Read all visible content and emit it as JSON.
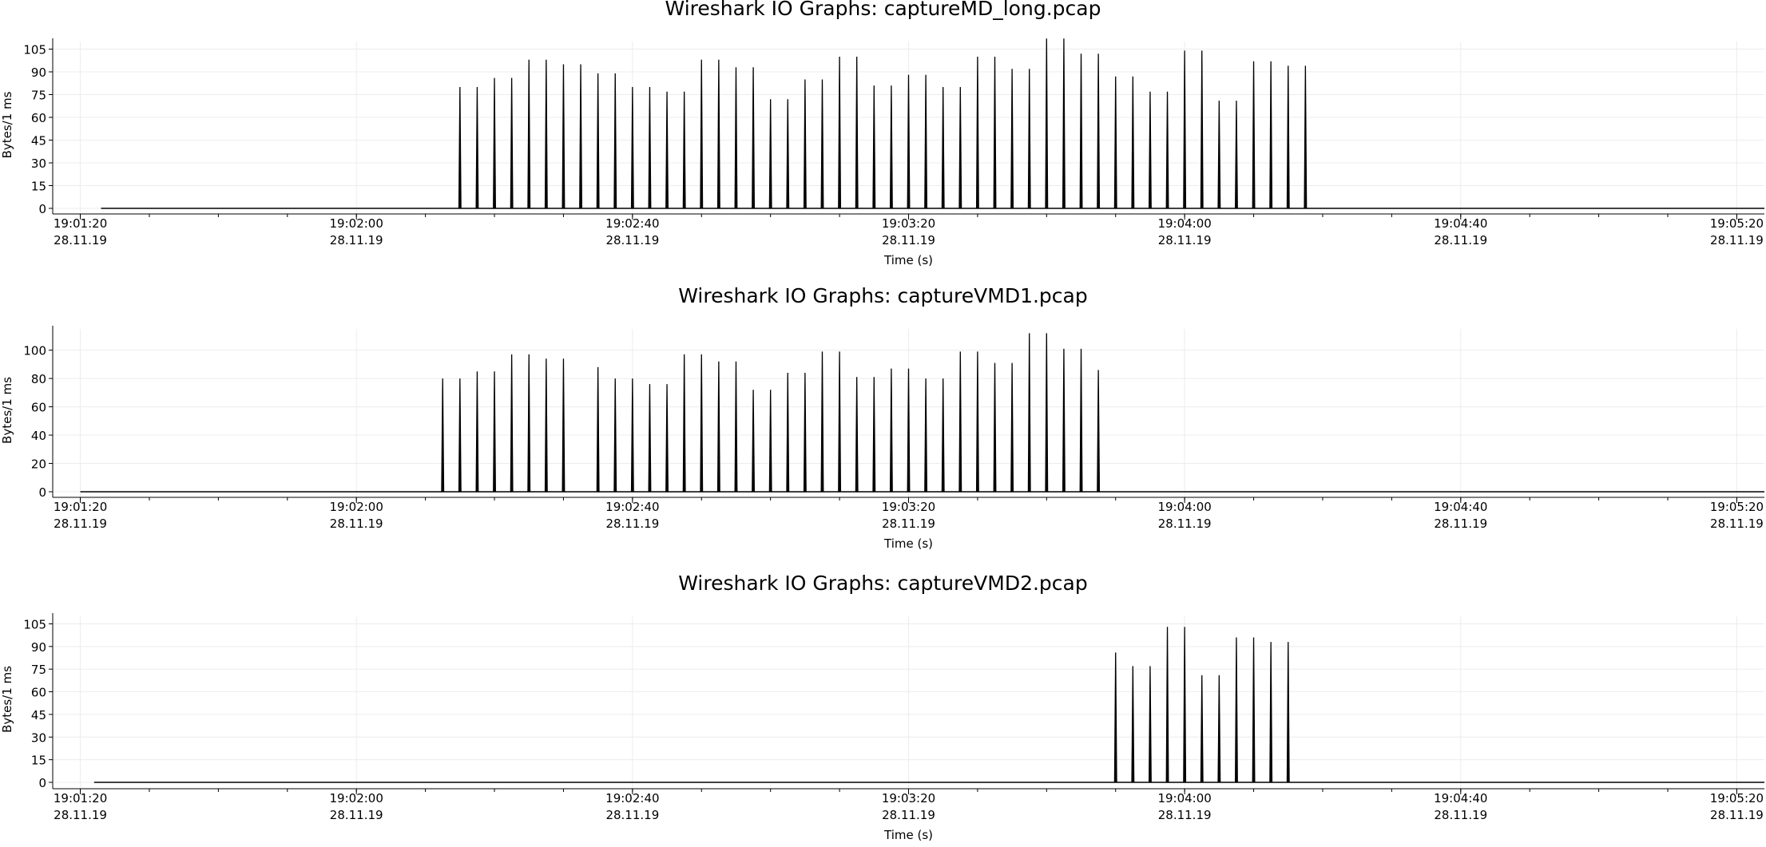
{
  "chart_data": [
    {
      "type": "line",
      "title": "Wireshark IO Graphs: captureMD_long.pcap",
      "ylabel": "Bytes/1 ms",
      "xlabel": "Time (s)",
      "ylim": [
        0,
        110
      ],
      "yticks": [
        0,
        15,
        30,
        45,
        60,
        75,
        90,
        105
      ],
      "xlim": [
        "19:01:16",
        "19:05:24"
      ],
      "xticks": [
        "19:01:20",
        "19:02:00",
        "19:02:40",
        "19:03:20",
        "19:04:00",
        "19:04:40",
        "19:05:20"
      ],
      "date_label": "28.11.19",
      "grid": true,
      "baseline": {
        "start": "19:01:23",
        "end": "19:05:24"
      },
      "series": [
        {
          "color": "#000000",
          "points": [
            {
              "t": "19:02:15",
              "y": 80
            },
            {
              "t": "19:02:17.5",
              "y": 80
            },
            {
              "t": "19:02:20",
              "y": 86
            },
            {
              "t": "19:02:22.5",
              "y": 86
            },
            {
              "t": "19:02:25",
              "y": 98
            },
            {
              "t": "19:02:27.5",
              "y": 98
            },
            {
              "t": "19:02:30",
              "y": 95
            },
            {
              "t": "19:02:32.5",
              "y": 95
            },
            {
              "t": "19:02:35",
              "y": 89
            },
            {
              "t": "19:02:37.5",
              "y": 89
            },
            {
              "t": "19:02:40",
              "y": 80
            },
            {
              "t": "19:02:42.5",
              "y": 80
            },
            {
              "t": "19:02:45",
              "y": 77
            },
            {
              "t": "19:02:47.5",
              "y": 77
            },
            {
              "t": "19:02:50",
              "y": 98
            },
            {
              "t": "19:02:52.5",
              "y": 98
            },
            {
              "t": "19:02:55",
              "y": 93
            },
            {
              "t": "19:02:57.5",
              "y": 93
            },
            {
              "t": "19:03:00",
              "y": 72
            },
            {
              "t": "19:03:02.5",
              "y": 72
            },
            {
              "t": "19:03:05",
              "y": 85
            },
            {
              "t": "19:03:07.5",
              "y": 85
            },
            {
              "t": "19:03:10",
              "y": 100
            },
            {
              "t": "19:03:12.5",
              "y": 100
            },
            {
              "t": "19:03:15",
              "y": 81
            },
            {
              "t": "19:03:17.5",
              "y": 81
            },
            {
              "t": "19:03:20",
              "y": 88
            },
            {
              "t": "19:03:22.5",
              "y": 88
            },
            {
              "t": "19:03:25",
              "y": 80
            },
            {
              "t": "19:03:27.5",
              "y": 80
            },
            {
              "t": "19:03:30",
              "y": 100
            },
            {
              "t": "19:03:32.5",
              "y": 100
            },
            {
              "t": "19:03:35",
              "y": 92
            },
            {
              "t": "19:03:37.5",
              "y": 92
            },
            {
              "t": "19:03:40",
              "y": 112
            },
            {
              "t": "19:03:42.5",
              "y": 112
            },
            {
              "t": "19:03:45",
              "y": 102
            },
            {
              "t": "19:03:47.5",
              "y": 102
            },
            {
              "t": "19:03:50",
              "y": 87
            },
            {
              "t": "19:03:52.5",
              "y": 87
            },
            {
              "t": "19:03:55",
              "y": 77
            },
            {
              "t": "19:03:57.5",
              "y": 77
            },
            {
              "t": "19:04:00",
              "y": 104
            },
            {
              "t": "19:04:02.5",
              "y": 104
            },
            {
              "t": "19:04:05",
              "y": 71
            },
            {
              "t": "19:04:07.5",
              "y": 71
            },
            {
              "t": "19:04:10",
              "y": 97
            },
            {
              "t": "19:04:12.5",
              "y": 97
            },
            {
              "t": "19:04:15",
              "y": 94
            },
            {
              "t": "19:04:17.5",
              "y": 94
            }
          ]
        }
      ]
    },
    {
      "type": "line",
      "title": "Wireshark IO Graphs: captureVMD1.pcap",
      "ylabel": "Bytes/1 ms",
      "xlabel": "Time (s)",
      "ylim": [
        0,
        115
      ],
      "yticks": [
        0,
        20,
        40,
        60,
        80,
        100
      ],
      "xlim": [
        "19:01:16",
        "19:05:24"
      ],
      "xticks": [
        "19:01:20",
        "19:02:00",
        "19:02:40",
        "19:03:20",
        "19:04:00",
        "19:04:40",
        "19:05:20"
      ],
      "date_label": "28.11.19",
      "grid": true,
      "baseline": {
        "start": "19:01:20",
        "end": "19:05:24"
      },
      "series": [
        {
          "color": "#000000",
          "points": [
            {
              "t": "19:02:12.5",
              "y": 80
            },
            {
              "t": "19:02:15",
              "y": 80
            },
            {
              "t": "19:02:17.5",
              "y": 85
            },
            {
              "t": "19:02:20",
              "y": 85
            },
            {
              "t": "19:02:22.5",
              "y": 97
            },
            {
              "t": "19:02:25",
              "y": 97
            },
            {
              "t": "19:02:27.5",
              "y": 94
            },
            {
              "t": "19:02:30",
              "y": 94
            },
            {
              "t": "19:02:35",
              "y": 88
            },
            {
              "t": "19:02:37.5",
              "y": 80
            },
            {
              "t": "19:02:40",
              "y": 80
            },
            {
              "t": "19:02:42.5",
              "y": 76
            },
            {
              "t": "19:02:45",
              "y": 76
            },
            {
              "t": "19:02:47.5",
              "y": 97
            },
            {
              "t": "19:02:50",
              "y": 97
            },
            {
              "t": "19:02:52.5",
              "y": 92
            },
            {
              "t": "19:02:55",
              "y": 92
            },
            {
              "t": "19:02:57.5",
              "y": 72
            },
            {
              "t": "19:03:00",
              "y": 72
            },
            {
              "t": "19:03:02.5",
              "y": 84
            },
            {
              "t": "19:03:05",
              "y": 84
            },
            {
              "t": "19:03:07.5",
              "y": 99
            },
            {
              "t": "19:03:10",
              "y": 99
            },
            {
              "t": "19:03:12.5",
              "y": 81
            },
            {
              "t": "19:03:15",
              "y": 81
            },
            {
              "t": "19:03:17.5",
              "y": 87
            },
            {
              "t": "19:03:20",
              "y": 87
            },
            {
              "t": "19:03:22.5",
              "y": 80
            },
            {
              "t": "19:03:25",
              "y": 80
            },
            {
              "t": "19:03:27.5",
              "y": 99
            },
            {
              "t": "19:03:30",
              "y": 99
            },
            {
              "t": "19:03:32.5",
              "y": 91
            },
            {
              "t": "19:03:35",
              "y": 91
            },
            {
              "t": "19:03:37.5",
              "y": 112
            },
            {
              "t": "19:03:40",
              "y": 112
            },
            {
              "t": "19:03:42.5",
              "y": 101
            },
            {
              "t": "19:03:45",
              "y": 101
            },
            {
              "t": "19:03:47.5",
              "y": 86
            }
          ]
        }
      ]
    },
    {
      "type": "line",
      "title": "Wireshark IO Graphs: captureVMD2.pcap",
      "ylabel": "Bytes/1 ms",
      "xlabel": "Time (s)",
      "ylim": [
        0,
        110
      ],
      "yticks": [
        0,
        15,
        30,
        45,
        60,
        75,
        90,
        105
      ],
      "xlim": [
        "19:01:16",
        "19:05:24"
      ],
      "xticks": [
        "19:01:20",
        "19:02:00",
        "19:02:40",
        "19:03:20",
        "19:04:00",
        "19:04:40",
        "19:05:20"
      ],
      "date_label": "28.11.19",
      "grid": true,
      "baseline": {
        "start": "19:01:22",
        "end": "19:05:24"
      },
      "series": [
        {
          "color": "#000000",
          "points": [
            {
              "t": "19:03:50",
              "y": 86
            },
            {
              "t": "19:03:52.5",
              "y": 77
            },
            {
              "t": "19:03:55",
              "y": 77
            },
            {
              "t": "19:03:57.5",
              "y": 103
            },
            {
              "t": "19:04:00",
              "y": 103
            },
            {
              "t": "19:04:02.5",
              "y": 71
            },
            {
              "t": "19:04:05",
              "y": 71
            },
            {
              "t": "19:04:07.5",
              "y": 96
            },
            {
              "t": "19:04:10",
              "y": 96
            },
            {
              "t": "19:04:12.5",
              "y": 93
            },
            {
              "t": "19:04:15",
              "y": 93
            }
          ]
        }
      ]
    }
  ]
}
